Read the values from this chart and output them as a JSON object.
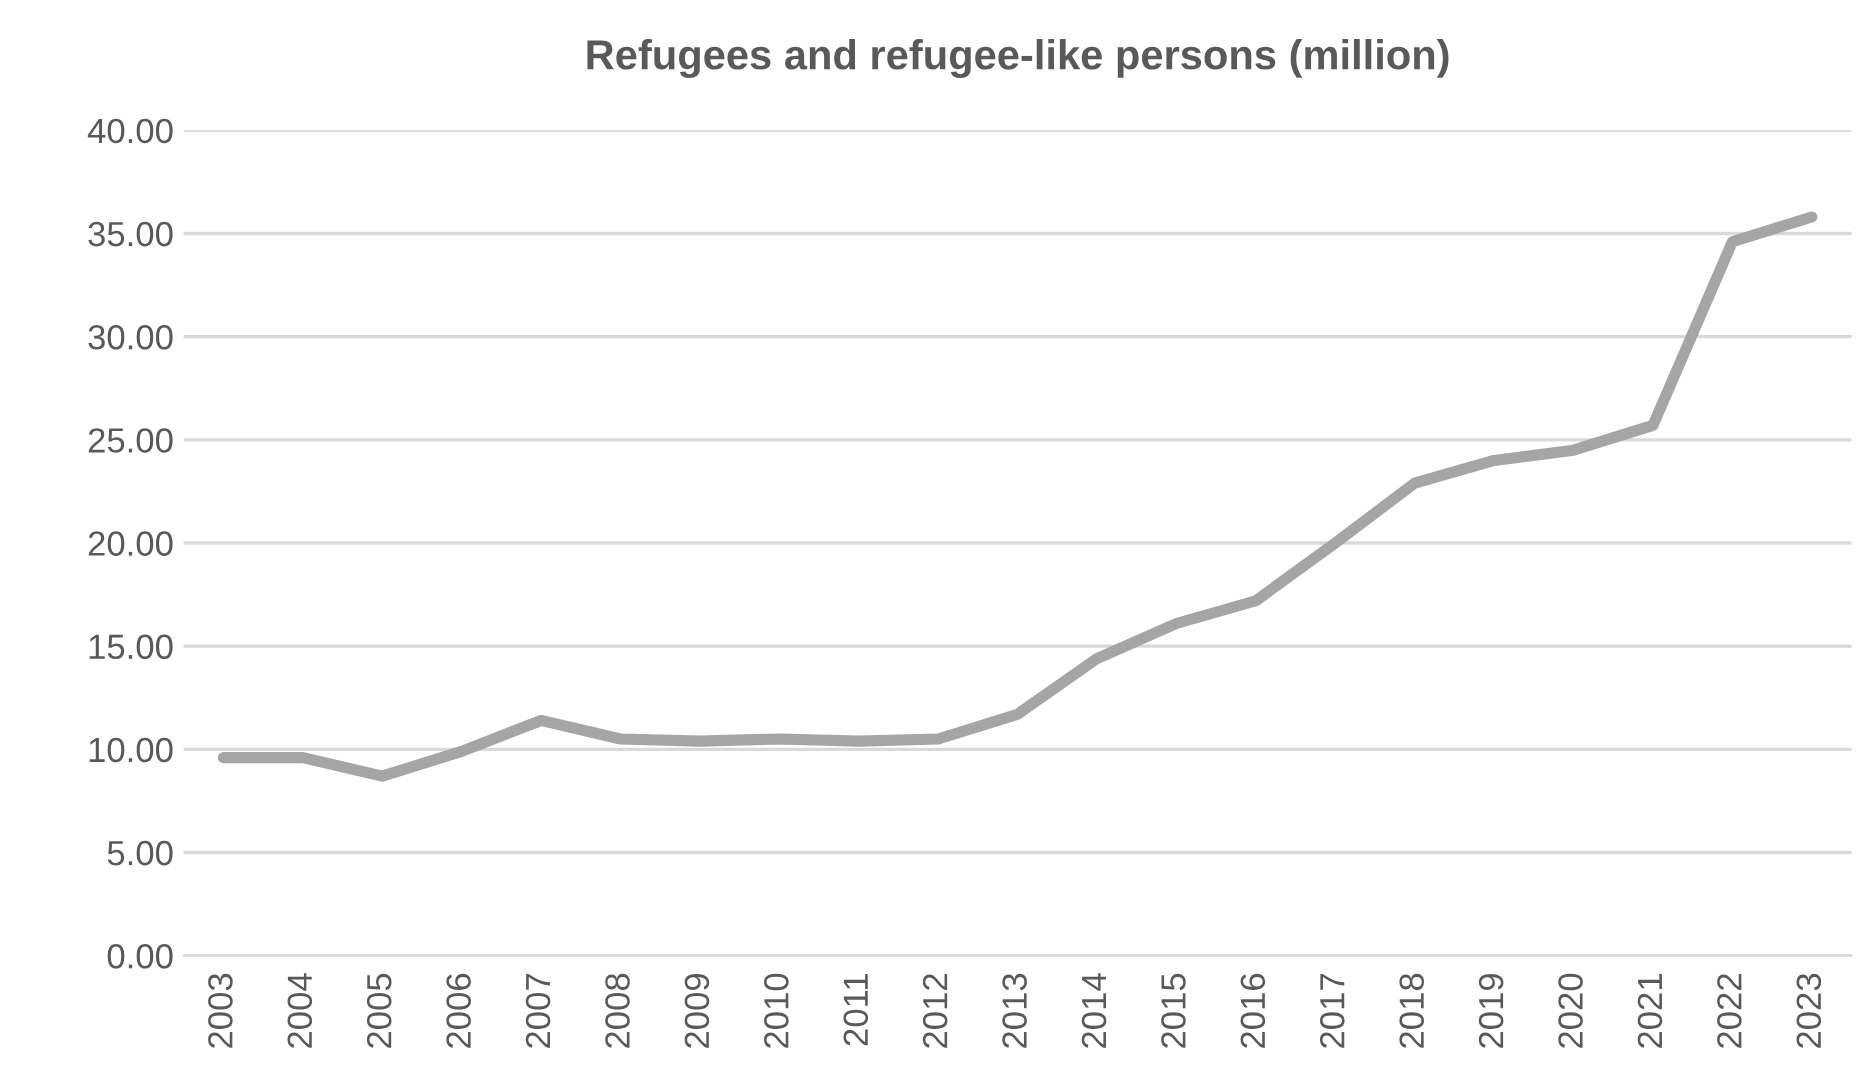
{
  "chart_data": {
    "type": "line",
    "title": "Refugees and refugee-like persons (million)",
    "categories": [
      "2003",
      "2004",
      "2005",
      "2006",
      "2007",
      "2008",
      "2009",
      "2010",
      "2011",
      "2012",
      "2013",
      "2014",
      "2015",
      "2016",
      "2017",
      "2018",
      "2019",
      "2020",
      "2021",
      "2022",
      "2023"
    ],
    "series": [
      {
        "color": "#a5a5a5",
        "values": [
          9.6,
          9.6,
          8.7,
          9.9,
          11.4,
          10.5,
          10.4,
          10.5,
          10.4,
          10.5,
          11.7,
          14.4,
          16.1,
          17.2,
          20.0,
          22.9,
          24.0,
          24.5,
          25.7,
          34.6,
          35.8
        ]
      }
    ],
    "ylim": [
      0,
      40
    ],
    "yticks": [
      {
        "value": 0,
        "label": "0.00"
      },
      {
        "value": 5,
        "label": "5.00"
      },
      {
        "value": 10,
        "label": "10.00"
      },
      {
        "value": 15,
        "label": "15.00"
      },
      {
        "value": 20,
        "label": "20.00"
      },
      {
        "value": 25,
        "label": "25.00"
      },
      {
        "value": 30,
        "label": "30.00"
      },
      {
        "value": 35,
        "label": "35.00"
      },
      {
        "value": 40,
        "label": "40.00"
      }
    ],
    "grid": "y",
    "marker": "none",
    "line_style": "solid"
  }
}
